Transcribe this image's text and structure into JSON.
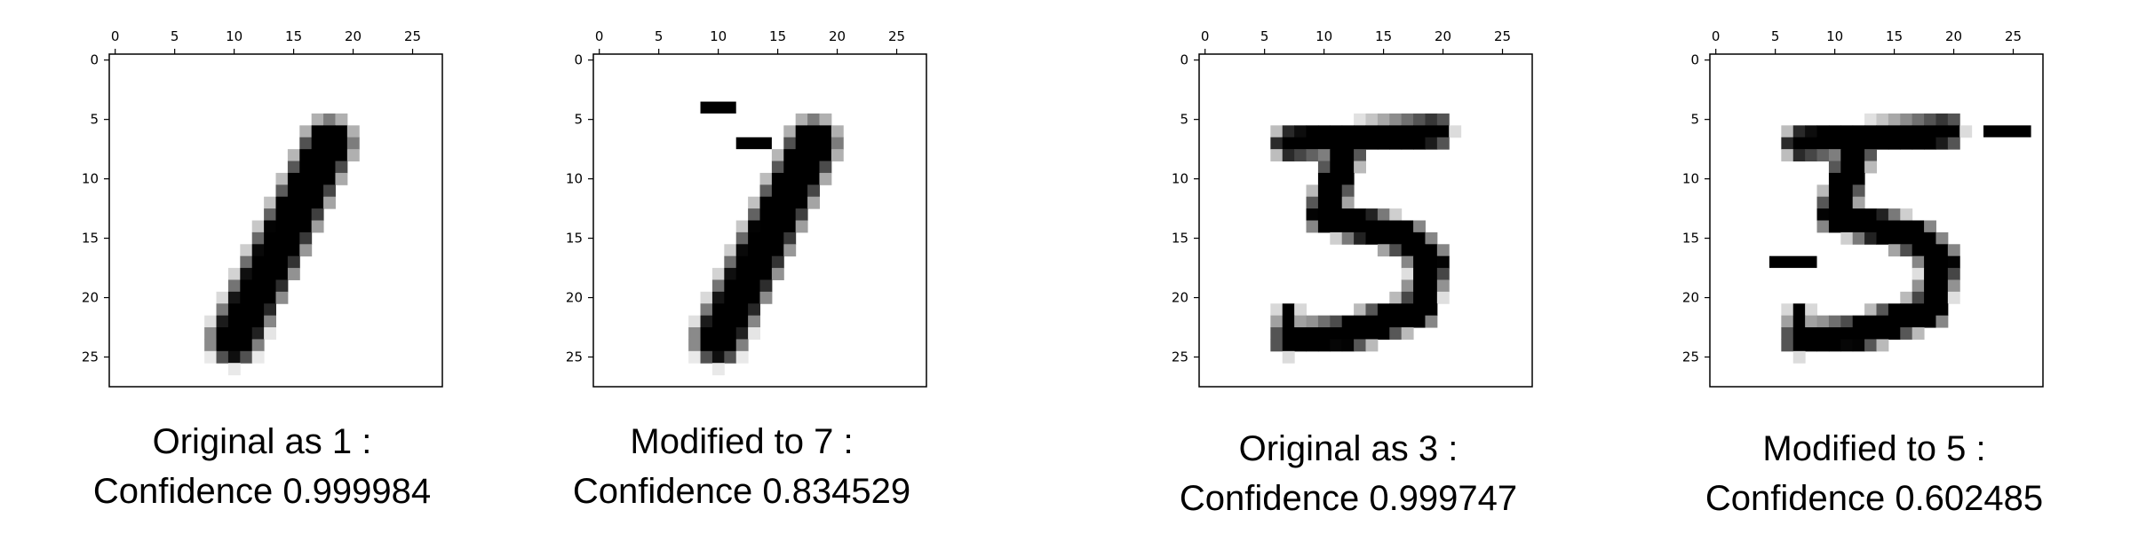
{
  "panels": [
    {
      "caption_line1": "Original as 1 :",
      "caption_line2": "Confidence 0.999984",
      "strokes": [
        {
          "x1": 18,
          "y1": 7,
          "x2": 10,
          "y2": 23.5,
          "w": 2.6
        }
      ],
      "patches": []
    },
    {
      "caption_line1": "Modified to 7 :",
      "caption_line2": "Confidence 0.834529",
      "strokes": [
        {
          "x1": 18,
          "y1": 7,
          "x2": 10,
          "y2": 23.5,
          "w": 2.6
        }
      ],
      "patches": [
        {
          "r": 4,
          "c0": 9,
          "c1": 12
        },
        {
          "r": 7,
          "c0": 12,
          "c1": 15
        }
      ]
    },
    {
      "caption_line1": "Original as 3 :",
      "caption_line2": "Confidence 0.999747",
      "strokes": [
        {
          "x1": 7,
          "y1": 7,
          "x2": 19.5,
          "y2": 6,
          "w": 1.6
        },
        {
          "x1": 12,
          "y1": 7,
          "x2": 10,
          "y2": 13,
          "w": 1.8
        },
        {
          "x1": 10,
          "y1": 13,
          "x2": 17,
          "y2": 15,
          "w": 1.8
        },
        {
          "x1": 17,
          "y1": 15,
          "x2": 19,
          "y2": 17,
          "w": 1.8
        },
        {
          "x1": 19,
          "y1": 17,
          "x2": 18,
          "y2": 21,
          "w": 1.8
        },
        {
          "x1": 18,
          "y1": 21,
          "x2": 12,
          "y2": 23,
          "w": 1.8
        },
        {
          "x1": 12,
          "y1": 23,
          "x2": 7,
          "y2": 23.5,
          "w": 1.6
        },
        {
          "x1": 7,
          "y1": 23.5,
          "x2": 7,
          "y2": 21.5,
          "w": 1.2
        }
      ],
      "patches": []
    },
    {
      "caption_line1": "Modified to 5 :",
      "caption_line2": "Confidence 0.602485",
      "strokes": [
        {
          "x1": 7,
          "y1": 7,
          "x2": 19.5,
          "y2": 6,
          "w": 1.6
        },
        {
          "x1": 12,
          "y1": 7,
          "x2": 10,
          "y2": 13,
          "w": 1.8
        },
        {
          "x1": 10,
          "y1": 13,
          "x2": 17,
          "y2": 15,
          "w": 1.8
        },
        {
          "x1": 17,
          "y1": 15,
          "x2": 19,
          "y2": 17,
          "w": 1.8
        },
        {
          "x1": 19,
          "y1": 17,
          "x2": 18,
          "y2": 21,
          "w": 1.8
        },
        {
          "x1": 18,
          "y1": 21,
          "x2": 12,
          "y2": 23,
          "w": 1.8
        },
        {
          "x1": 12,
          "y1": 23,
          "x2": 7,
          "y2": 23.5,
          "w": 1.6
        },
        {
          "x1": 7,
          "y1": 23.5,
          "x2": 7,
          "y2": 21.5,
          "w": 1.2
        }
      ],
      "patches": [
        {
          "r": 6,
          "c0": 23,
          "c1": 27
        },
        {
          "r": 17,
          "c0": 5,
          "c1": 9
        }
      ]
    }
  ],
  "axis": {
    "grid_size": 28,
    "ticks": [
      0,
      5,
      10,
      15,
      20,
      25
    ],
    "tick_labels": [
      "0",
      "5",
      "10",
      "15",
      "20",
      "25"
    ]
  },
  "colors": {
    "ink": "#000000",
    "background": "#ffffff",
    "frame": "#000000"
  }
}
